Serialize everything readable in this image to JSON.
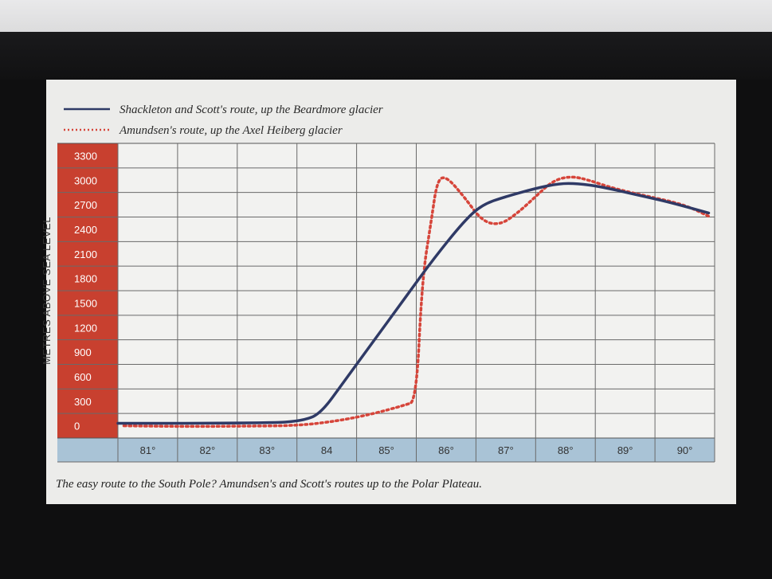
{
  "legend": {
    "series1": "Shackleton and Scott's route, up the Beardmore glacier",
    "series2": "Amundsen's route, up the Axel Heiberg glacier"
  },
  "caption": "The easy route to the South Pole? Amundsen's and Scott's routes up to the Polar Plateau.",
  "colors": {
    "series1": "#2f3a66",
    "series2": "#d6453a",
    "axis_band": "#c8402f",
    "x_band": "#a9c3d6"
  },
  "chart_data": {
    "type": "line",
    "title": "",
    "xlabel": "",
    "ylabel": "METRES ABOVE SEA LEVEL",
    "ylim": [
      0,
      3300
    ],
    "yticks": [
      "3300",
      "3000",
      "2700",
      "2400",
      "2100",
      "1800",
      "1500",
      "1200",
      "900",
      "600",
      "300",
      "0"
    ],
    "xticks": [
      "81°",
      "82°",
      "83°",
      "84",
      "85°",
      "86°",
      "87°",
      "88°",
      "89°",
      "90°"
    ],
    "xlim": [
      80.5,
      90.5
    ],
    "grid": true,
    "legend_position": "top-left",
    "series": [
      {
        "name": "Shackleton and Scott's route, up the Beardmore glacier",
        "style": "solid",
        "x": [
          80.5,
          83.0,
          83.6,
          83.9,
          84.3,
          84.8,
          85.3,
          85.8,
          86.3,
          86.6,
          87.0,
          87.5,
          87.9,
          88.2,
          88.6,
          89.2,
          89.7,
          90.4
        ],
        "y": [
          30,
          30,
          60,
          150,
          550,
          1050,
          1550,
          2050,
          2500,
          2700,
          2800,
          2900,
          2960,
          2960,
          2920,
          2820,
          2740,
          2600
        ]
      },
      {
        "name": "Amundsen's route, up the Axel Heiberg glacier",
        "style": "dotted",
        "x": [
          80.6,
          81.5,
          82.5,
          83.5,
          84.2,
          84.8,
          85.3,
          85.5,
          85.6,
          85.75,
          85.85,
          86.0,
          86.3,
          86.6,
          86.9,
          87.2,
          87.5,
          87.8,
          88.1,
          88.4,
          88.8,
          89.4,
          90.0,
          90.4
        ],
        "y": [
          0,
          -10,
          -5,
          0,
          60,
          150,
          250,
          300,
          1800,
          2500,
          3000,
          3050,
          2800,
          2500,
          2450,
          2600,
          2800,
          3000,
          3050,
          3000,
          2900,
          2800,
          2700,
          2560
        ]
      }
    ]
  }
}
